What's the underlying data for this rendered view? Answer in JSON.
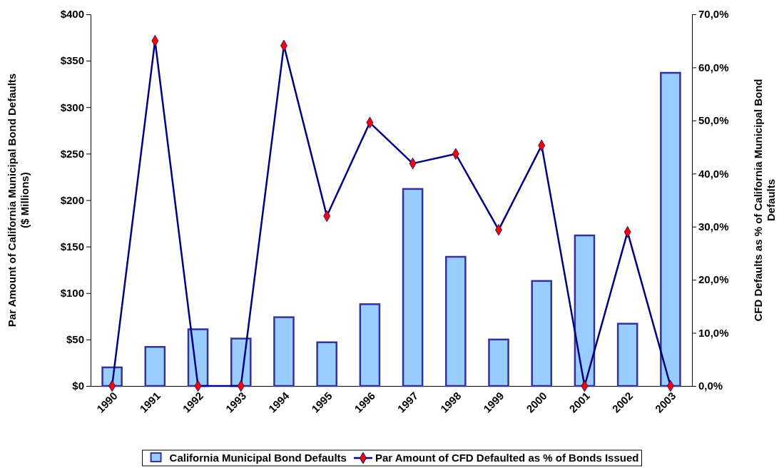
{
  "chart_data": {
    "type": "bar",
    "categories": [
      "1990",
      "1991",
      "1992",
      "1993",
      "1994",
      "1995",
      "1996",
      "1997",
      "1998",
      "1999",
      "2000",
      "2001",
      "2002",
      "2003"
    ],
    "ylabel": "Par Amount of California Municipal Bond Defaults\n($ Millions)",
    "y2label": "CFD Defaults as % of California Municipal Bond\nDefaults",
    "ylim": [
      0,
      400
    ],
    "yticks": [
      {
        "value": 0,
        "label": "$0"
      },
      {
        "value": 50,
        "label": "$50"
      },
      {
        "value": 100,
        "label": "$100"
      },
      {
        "value": 150,
        "label": "$150"
      },
      {
        "value": 200,
        "label": "$200"
      },
      {
        "value": 250,
        "label": "$250"
      },
      {
        "value": 300,
        "label": "$300"
      },
      {
        "value": 350,
        "label": "$350"
      },
      {
        "value": 400,
        "label": "$400"
      }
    ],
    "y2lim": [
      0,
      70
    ],
    "y2ticks": [
      {
        "value": 0,
        "label": "0,0%"
      },
      {
        "value": 10,
        "label": "10,0%"
      },
      {
        "value": 20,
        "label": "20,0%"
      },
      {
        "value": 30,
        "label": "30,0%"
      },
      {
        "value": 40,
        "label": "40,0%"
      },
      {
        "value": 50,
        "label": "50,0%"
      },
      {
        "value": 60,
        "label": "60,0%"
      },
      {
        "value": 70,
        "label": "70,0%"
      }
    ],
    "series": [
      {
        "name": "California Municipal Bond Defaults",
        "color": "#99ccff",
        "values": [
          20,
          42,
          61,
          51,
          74,
          47,
          88,
          212,
          139,
          50,
          113,
          162,
          67,
          337
        ]
      },
      {
        "name": "Par Amount of CFD Defaulted as % of Bonds Issued",
        "type": "line",
        "axis": "y2",
        "color": "#000080",
        "marker": "diamond",
        "values": [
          0,
          65,
          0,
          0,
          64.1,
          32,
          49.6,
          41.9,
          43.7,
          29.4,
          45.3,
          0,
          29,
          0
        ]
      }
    ],
    "legend": "bottom",
    "grid": false
  }
}
